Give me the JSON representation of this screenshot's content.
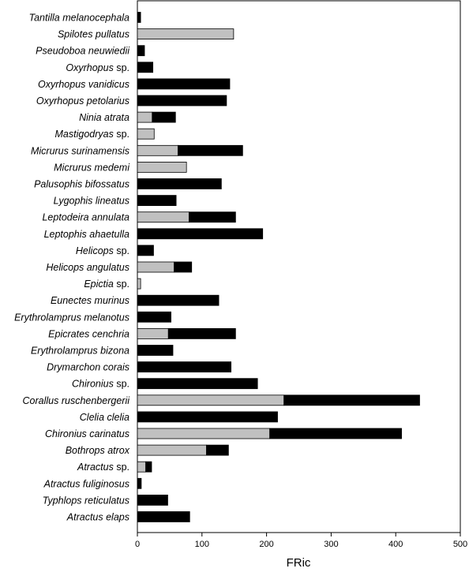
{
  "chart_data": {
    "type": "bar",
    "orientation": "horizontal",
    "stacked": true,
    "xlabel": "FRic",
    "xlim": [
      0,
      500
    ],
    "xticks": [
      0,
      100,
      200,
      300,
      400,
      500
    ],
    "grid": false,
    "legend": "none",
    "colors": {
      "gray": "#c0c0c0",
      "black": "#000000"
    },
    "categories": [
      {
        "italic": "Tantilla melanocephala",
        "suffix": ""
      },
      {
        "italic": "Spilotes pullatus",
        "suffix": ""
      },
      {
        "italic": "Pseudoboa neuwiedii",
        "suffix": ""
      },
      {
        "italic": "Oxyrhopus",
        "suffix": " sp."
      },
      {
        "italic": "Oxyrhopus vanidicus",
        "suffix": ""
      },
      {
        "italic": "Oxyrhopus petolarius",
        "suffix": ""
      },
      {
        "italic": "Ninia atrata",
        "suffix": ""
      },
      {
        "italic": "Mastigodryas",
        "suffix": " sp."
      },
      {
        "italic": "Micrurus surinamensis",
        "suffix": ""
      },
      {
        "italic": "Micrurus medemi",
        "suffix": ""
      },
      {
        "italic": "Palusophis bifossatus",
        "suffix": ""
      },
      {
        "italic": "Lygophis lineatus",
        "suffix": ""
      },
      {
        "italic": "Leptodeira annulata",
        "suffix": ""
      },
      {
        "italic": "Leptophis ahaetulla",
        "suffix": ""
      },
      {
        "italic": "Helicops",
        "suffix": " sp."
      },
      {
        "italic": "Helicops angulatus",
        "suffix": ""
      },
      {
        "italic": "Epictia",
        "suffix": " sp."
      },
      {
        "italic": "Eunectes murinus",
        "suffix": ""
      },
      {
        "italic": "Erythrolamprus melanotus",
        "suffix": ""
      },
      {
        "italic": "Epicrates cenchria",
        "suffix": ""
      },
      {
        "italic": "Erythrolamprus bizona",
        "suffix": ""
      },
      {
        "italic": "Drymarchon corais",
        "suffix": ""
      },
      {
        "italic": "Chironius",
        "suffix": " sp."
      },
      {
        "italic": "Corallus ruschenbergerii",
        "suffix": ""
      },
      {
        "italic": "Clelia clelia",
        "suffix": ""
      },
      {
        "italic": "Chironius carinatus",
        "suffix": ""
      },
      {
        "italic": "Bothrops atrox",
        "suffix": ""
      },
      {
        "italic": "Atractus",
        "suffix": " sp."
      },
      {
        "italic": "Atractus fuliginosus",
        "suffix": ""
      },
      {
        "italic": "Typhlops reticulatus",
        "suffix": ""
      },
      {
        "italic": "Atractus elaps",
        "suffix": ""
      }
    ],
    "series": [
      {
        "color": "#c0c0c0",
        "values": [
          0,
          149,
          0,
          0,
          0,
          0,
          23,
          26,
          63,
          76,
          0,
          0,
          80,
          0,
          0,
          57,
          5,
          0,
          0,
          48,
          0,
          0,
          0,
          227,
          0,
          205,
          107,
          13,
          0,
          0,
          0
        ]
      },
      {
        "color": "#000000",
        "values": [
          5,
          0,
          11,
          24,
          143,
          138,
          36,
          0,
          100,
          0,
          130,
          60,
          72,
          194,
          25,
          27,
          0,
          126,
          52,
          104,
          55,
          145,
          186,
          210,
          217,
          204,
          34,
          9,
          6,
          47,
          81
        ]
      }
    ]
  }
}
